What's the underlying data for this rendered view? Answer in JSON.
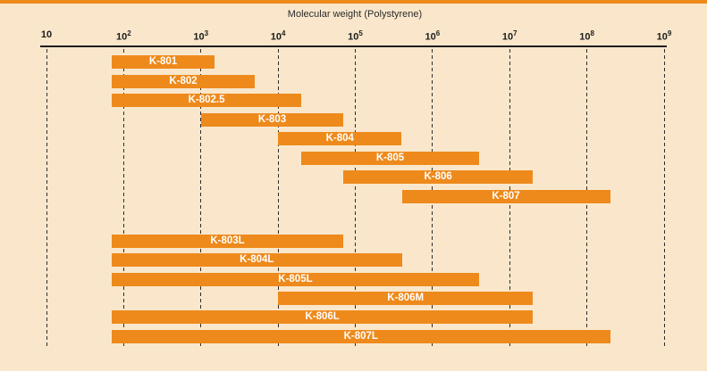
{
  "chart_data": {
    "type": "bar",
    "orientation": "horizontal-range",
    "title": "Molecular weight (Polystyrene)",
    "bar_color": "#ee8a1c",
    "background_color": "#fae7cb",
    "label_text_color": "#ffffff",
    "axis_text_color": "#1c1c1c",
    "grid": "dotted-vertical-per-decade",
    "x_axis": {
      "scale": "log10",
      "min": 10,
      "max": 1000000000,
      "tick_base": "10",
      "tick_exponents": [
        1,
        2,
        3,
        4,
        5,
        6,
        7,
        8,
        9
      ],
      "position": "top"
    },
    "groups": [
      {
        "name": "upper-group",
        "bars": [
          {
            "label": "K-801",
            "min": 70,
            "max": 1500
          },
          {
            "label": "K-802",
            "min": 70,
            "max": 5000
          },
          {
            "label": "K-802.5",
            "min": 70,
            "max": 20000
          },
          {
            "label": "K-803",
            "min": 1000,
            "max": 70000
          },
          {
            "label": "K-804",
            "min": 10000,
            "max": 400000
          },
          {
            "label": "K-805",
            "min": 20000,
            "max": 4000000
          },
          {
            "label": "K-806",
            "min": 70000,
            "max": 20000000
          },
          {
            "label": "K-807",
            "min": 400000,
            "max": 200000000
          }
        ]
      },
      {
        "name": "lower-group",
        "bars": [
          {
            "label": "K-803L",
            "min": 70,
            "max": 70000
          },
          {
            "label": "K-804L",
            "min": 70,
            "max": 400000
          },
          {
            "label": "K-805L",
            "min": 70,
            "max": 4000000
          },
          {
            "label": "K-806M",
            "min": 10000,
            "max": 20000000
          },
          {
            "label": "K-806L",
            "min": 70,
            "max": 20000000
          },
          {
            "label": "K-807L",
            "min": 70,
            "max": 200000000
          }
        ]
      }
    ]
  }
}
